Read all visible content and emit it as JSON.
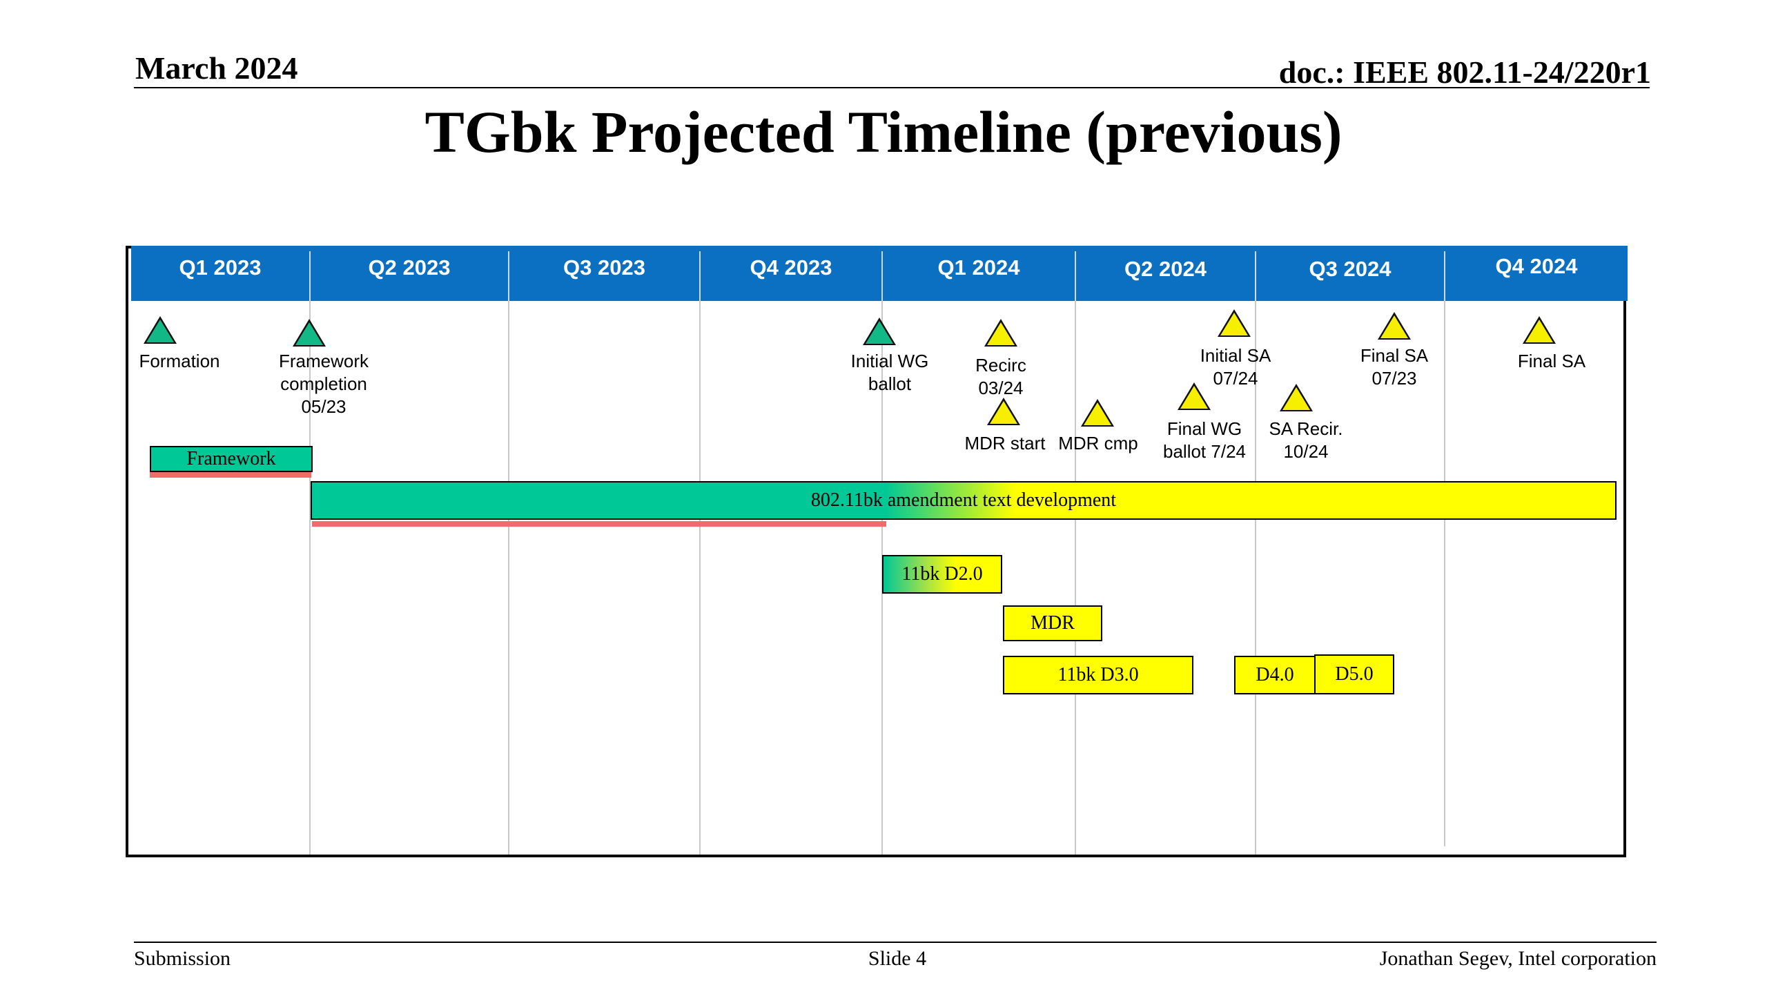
{
  "header": {
    "date": "March 2024",
    "doc": "doc.: IEEE 802.11-24/220r1"
  },
  "title": "TGbk Projected Timeline (previous)",
  "colors": {
    "quarter_band": "#0b6fc2",
    "green": "#00c896",
    "yellow": "#ffff00",
    "red_progress": "#f06b6b"
  },
  "quarters": [
    "Q1 2023",
    "Q2 2023",
    "Q3 2023",
    "Q4 2023",
    "Q1 2024",
    "Q2 2024",
    "Q3 2024",
    "Q4 2024"
  ],
  "milestones": [
    {
      "label": "Formation",
      "status": "completed",
      "color": "green"
    },
    {
      "label": "Framework completion 05/23",
      "lines": [
        "Framework",
        "completion",
        "05/23"
      ],
      "status": "completed",
      "color": "green"
    },
    {
      "label": "Initial WG ballot",
      "lines": [
        "Initial WG",
        "ballot"
      ],
      "status": "completed",
      "color": "green"
    },
    {
      "label": "Recirc 03/24",
      "lines": [
        "Recirc",
        "03/24"
      ],
      "status": "planned",
      "color": "yellow"
    },
    {
      "label": "MDR start",
      "lines": [
        "MDR start"
      ],
      "status": "planned",
      "color": "yellow"
    },
    {
      "label": "MDR cmp",
      "lines": [
        "MDR cmp"
      ],
      "status": "planned",
      "color": "yellow"
    },
    {
      "label": "Initial SA 07/24",
      "lines": [
        "Initial SA",
        "07/24"
      ],
      "status": "planned",
      "color": "yellow"
    },
    {
      "label": "Final WG ballot 7/24",
      "lines": [
        "Final WG",
        "ballot 7/24"
      ],
      "status": "planned",
      "color": "yellow"
    },
    {
      "label": "SA Recir. 10/24",
      "lines": [
        "SA Recir.",
        "10/24"
      ],
      "status": "planned",
      "color": "yellow"
    },
    {
      "label": "Final SA 07/23",
      "lines": [
        "Final SA",
        "07/23"
      ],
      "status": "planned",
      "color": "yellow"
    },
    {
      "label": "Final SA",
      "lines": [
        "Final SA"
      ],
      "status": "planned",
      "color": "yellow"
    }
  ],
  "bars": [
    {
      "label": "Framework",
      "color": "green",
      "progress": 1.0
    },
    {
      "label": "802.11bk amendment text development",
      "color": "green-to-yellow",
      "progress": 0.44
    },
    {
      "label": "11bk D2.0",
      "color": "green-to-yellow"
    },
    {
      "label": "MDR",
      "color": "yellow"
    },
    {
      "label": "11bk D3.0",
      "color": "yellow"
    },
    {
      "label": "D4.0",
      "color": "yellow"
    },
    {
      "label": "D5.0",
      "color": "yellow"
    }
  ],
  "footer": {
    "left": "Submission",
    "center": "Slide 4",
    "right": "Jonathan Segev, Intel corporation"
  }
}
